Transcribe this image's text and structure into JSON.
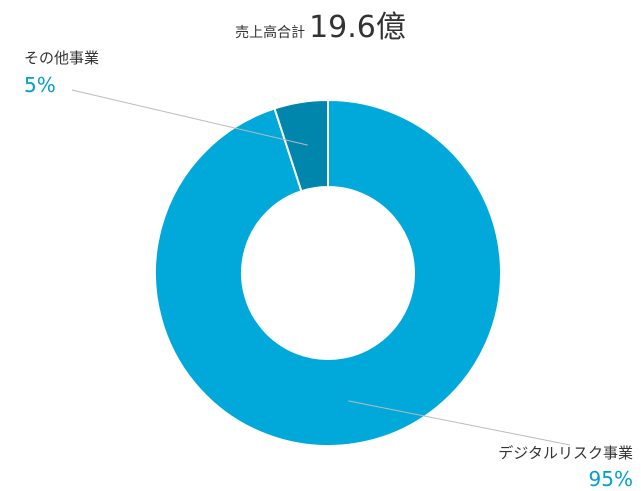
{
  "header": {
    "label": "売上高合計",
    "value": "19.6億"
  },
  "chart_data": {
    "type": "pie",
    "donut": true,
    "categories": [
      "デジタルリスク事業",
      "その他事業"
    ],
    "values": [
      95,
      5
    ],
    "percent_labels": [
      "95%",
      "5%"
    ],
    "colors": [
      "#00a9da",
      "#0086ac"
    ],
    "pct_color": "#00a0cc",
    "start_angle_deg": 0,
    "direction": "clockwise",
    "legend": "none",
    "title": "売上高合計 19.6億"
  }
}
